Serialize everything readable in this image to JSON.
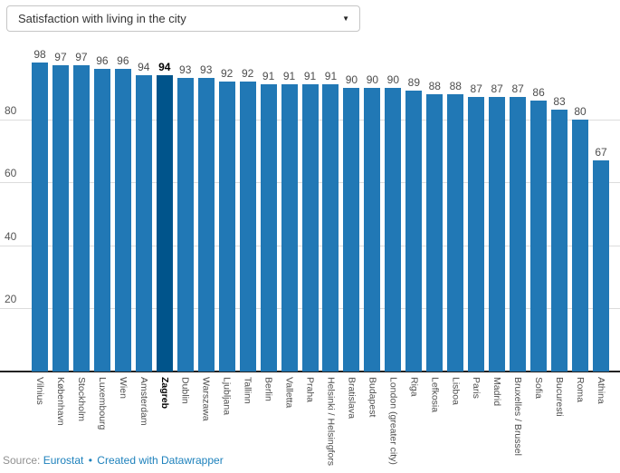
{
  "dropdown": {
    "selected": "Satisfaction with living in the city",
    "caret_icon": "▼"
  },
  "chart_data": {
    "type": "bar",
    "title": "Satisfaction with living in the city",
    "categories": [
      "Vilnius",
      "København",
      "Stockholm",
      "Luxembourg",
      "Wien",
      "Amsterdam",
      "Zagreb",
      "Dublin",
      "Warszawa",
      "Ljubljana",
      "Tallinn",
      "Berlin",
      "Valletta",
      "Praha",
      "Helsinki / Helsingfors",
      "Bratislava",
      "Budapest",
      "London (greater city)",
      "Riga",
      "Lefkosia",
      "Lisboa",
      "Paris",
      "Madrid",
      "Bruxelles / Brussel",
      "Sofia",
      "Bucuresti",
      "Roma",
      "Athina"
    ],
    "values": [
      98,
      97,
      97,
      96,
      96,
      94,
      94,
      93,
      93,
      92,
      92,
      91,
      91,
      91,
      91,
      90,
      90,
      90,
      89,
      88,
      88,
      87,
      87,
      87,
      86,
      83,
      80,
      67
    ],
    "highlight_category": "Zagreb",
    "highlight_index": 6,
    "yticks": [
      20,
      40,
      60,
      80
    ],
    "ylim": [
      0,
      100
    ],
    "grid": true,
    "value_labels": true,
    "legend": "none",
    "xlabel": "",
    "ylabel": ""
  },
  "colors": {
    "bar": "#2178b5",
    "bar_highlight": "#00548b",
    "gridline": "#dcdcdc",
    "axis_line": "#222222",
    "link_blue": "#1d81bc"
  },
  "footer": {
    "prefix": "Source:",
    "source_link": "Eurostat",
    "separator": "•",
    "credit_link": "Created with Datawrapper"
  }
}
